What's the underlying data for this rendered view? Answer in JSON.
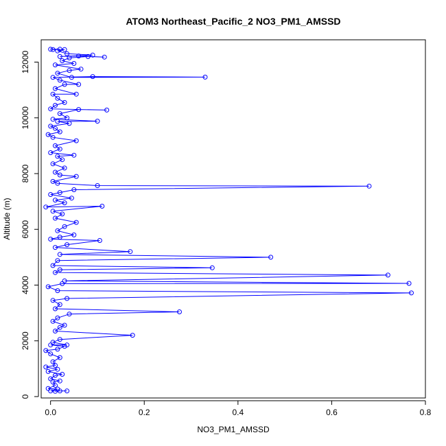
{
  "chart_data": {
    "type": "line",
    "title": "ATOM3 Northeast_Pacific_2 NO3_PM1_AMSSD",
    "xlabel": "NO3_PM1_AMSSD",
    "ylabel": "Altitude (m)",
    "xlim": [
      -0.02,
      0.8
    ],
    "ylim": [
      -50,
      12800
    ],
    "x_ticks": [
      0.0,
      0.2,
      0.4,
      0.6,
      0.8
    ],
    "x_tick_labels": [
      "0.0",
      "0.2",
      "0.4",
      "0.6",
      "0.8"
    ],
    "y_ticks": [
      0,
      2000,
      4000,
      6000,
      8000,
      10000,
      12000
    ],
    "y_tick_labels": [
      "0",
      "2000",
      "4000",
      "6000",
      "8000",
      "10000",
      "12000"
    ],
    "grid": false,
    "series": [
      {
        "color": "#0000ff",
        "marker": "open-circle",
        "points": [
          [
            0.01,
            190
          ],
          [
            0.02,
            200
          ],
          [
            0.035,
            200
          ],
          [
            0.0,
            200
          ],
          [
            0.015,
            270
          ],
          [
            -0.005,
            290
          ],
          [
            0.01,
            400
          ],
          [
            0.005,
            520
          ],
          [
            0.02,
            560
          ],
          [
            0.0,
            640
          ],
          [
            0.01,
            760
          ],
          [
            0.025,
            800
          ],
          [
            -0.005,
            900
          ],
          [
            0.015,
            980
          ],
          [
            -0.01,
            1060
          ],
          [
            0.01,
            1120
          ],
          [
            0.005,
            1250
          ],
          [
            0.02,
            1400
          ],
          [
            0.0,
            1530
          ],
          [
            -0.01,
            1650
          ],
          [
            0.015,
            1700
          ],
          [
            0.03,
            1800
          ],
          [
            0.0,
            1850
          ],
          [
            0.035,
            1850
          ],
          [
            0.005,
            1950
          ],
          [
            0.02,
            2050
          ],
          [
            0.175,
            2200
          ],
          [
            0.01,
            2350
          ],
          [
            0.02,
            2480
          ],
          [
            0.03,
            2560
          ],
          [
            0.005,
            2700
          ],
          [
            0.015,
            2820
          ],
          [
            0.04,
            2960
          ],
          [
            0.275,
            3040
          ],
          [
            0.01,
            3150
          ],
          [
            0.02,
            3300
          ],
          [
            0.005,
            3450
          ],
          [
            0.035,
            3520
          ],
          [
            0.77,
            3720
          ],
          [
            0.015,
            3800
          ],
          [
            -0.005,
            3940
          ],
          [
            0.025,
            4050
          ],
          [
            0.765,
            4060
          ],
          [
            0.03,
            4150
          ],
          [
            0.72,
            4360
          ],
          [
            0.01,
            4450
          ],
          [
            0.02,
            4550
          ],
          [
            0.345,
            4620
          ],
          [
            0.005,
            4700
          ],
          [
            0.015,
            4880
          ],
          [
            0.47,
            5000
          ],
          [
            0.02,
            5100
          ],
          [
            0.17,
            5200
          ],
          [
            0.01,
            5350
          ],
          [
            0.035,
            5450
          ],
          [
            0.105,
            5600
          ],
          [
            0.0,
            5650
          ],
          [
            0.02,
            5720
          ],
          [
            0.05,
            5800
          ],
          [
            0.015,
            5950
          ],
          [
            0.03,
            6100
          ],
          [
            0.055,
            6250
          ],
          [
            0.01,
            6400
          ],
          [
            0.025,
            6550
          ],
          [
            0.005,
            6650
          ],
          [
            0.11,
            6830
          ],
          [
            -0.01,
            6800
          ],
          [
            0.03,
            6950
          ],
          [
            0.01,
            7050
          ],
          [
            0.045,
            7120
          ],
          [
            0.0,
            7250
          ],
          [
            0.02,
            7320
          ],
          [
            0.05,
            7420
          ],
          [
            0.68,
            7550
          ],
          [
            0.1,
            7570
          ],
          [
            0.015,
            7650
          ],
          [
            0.005,
            7720
          ],
          [
            0.055,
            7900
          ],
          [
            0.02,
            7950
          ],
          [
            0.01,
            8050
          ],
          [
            0.03,
            8200
          ],
          [
            0.005,
            8350
          ],
          [
            0.025,
            8500
          ],
          [
            0.015,
            8620
          ],
          [
            0.05,
            8660
          ],
          [
            0.0,
            8750
          ],
          [
            0.02,
            8880
          ],
          [
            0.01,
            9000
          ],
          [
            0.055,
            9180
          ],
          [
            0.005,
            9300
          ],
          [
            -0.005,
            9400
          ],
          [
            0.02,
            9500
          ],
          [
            0.01,
            9620
          ],
          [
            0.0,
            9700
          ],
          [
            0.04,
            9800
          ],
          [
            0.015,
            9870
          ],
          [
            0.1,
            9880
          ],
          [
            0.005,
            9950
          ],
          [
            0.035,
            10000
          ],
          [
            0.02,
            10150
          ],
          [
            0.06,
            10300
          ],
          [
            0.12,
            10280
          ],
          [
            0.0,
            10320
          ],
          [
            0.01,
            10450
          ],
          [
            0.03,
            10550
          ],
          [
            0.015,
            10700
          ],
          [
            0.005,
            10850
          ],
          [
            0.055,
            10850
          ],
          [
            0.01,
            11050
          ],
          [
            0.03,
            11200
          ],
          [
            0.06,
            11200
          ],
          [
            0.02,
            11350
          ],
          [
            0.005,
            11450
          ],
          [
            0.09,
            11480
          ],
          [
            0.33,
            11460
          ],
          [
            0.045,
            11450
          ],
          [
            0.015,
            11600
          ],
          [
            0.04,
            11700
          ],
          [
            0.065,
            11750
          ],
          [
            0.01,
            11900
          ],
          [
            0.05,
            11950
          ],
          [
            0.025,
            12050
          ],
          [
            0.04,
            12150
          ],
          [
            0.08,
            12200
          ],
          [
            0.115,
            12180
          ],
          [
            0.06,
            12220
          ],
          [
            0.02,
            12200
          ],
          [
            0.09,
            12250
          ],
          [
            0.035,
            12300
          ],
          [
            0.015,
            12400
          ],
          [
            0.03,
            12450
          ],
          [
            0.0,
            12460
          ],
          [
            0.02,
            12460
          ],
          [
            0.005,
            12450
          ]
        ]
      }
    ]
  }
}
